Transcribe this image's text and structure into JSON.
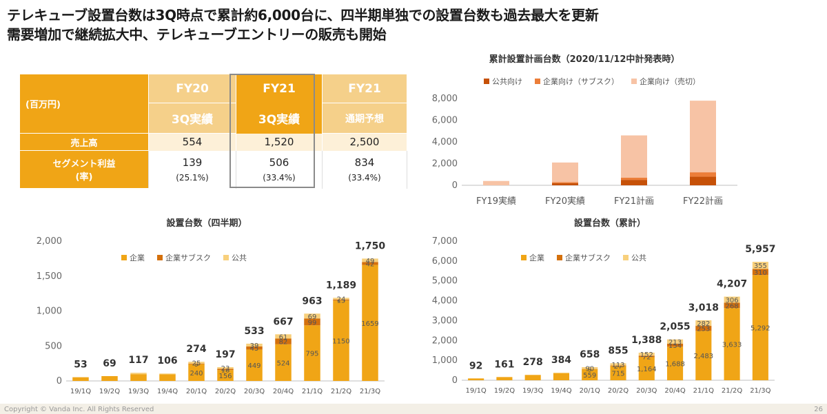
{
  "headline": {
    "line1": "テレキューブ設置台数は3Q時点で累計約6,000台に、四半期単独での設置台数も過去最大を更新",
    "line2": "需要増加で継続拡大中、テレキューブエントリーの販売も開始"
  },
  "table": {
    "unit": "(百万円)",
    "columns": [
      {
        "fy": "FY20",
        "period": "3Q実績"
      },
      {
        "fy": "FY21",
        "period": "3Q実績"
      },
      {
        "fy": "FY21",
        "period": "通期予想"
      }
    ],
    "rows": {
      "sales_label": "売上高",
      "sales": [
        "554",
        "1,520",
        "2,500"
      ],
      "segment_label_1": "セグメント利益",
      "segment_label_2": "(率)",
      "segment": [
        "139",
        "506",
        "834"
      ],
      "segment_rate": [
        "(25.1%)",
        "(33.4%)",
        "(33.4%)"
      ]
    }
  },
  "footer": {
    "copyright": "Copyright © Vanda Inc. All Rights Reserved",
    "page": "26"
  },
  "chart_data": [
    {
      "id": "plan",
      "type": "bar",
      "stacked": true,
      "title": "累計設置計画台数（2020/11/12中計発表時）",
      "categories": [
        "FY19実績",
        "FY20実績",
        "FY21計画",
        "FY22計画"
      ],
      "ylim": [
        0,
        8000
      ],
      "yticks": [
        "0",
        "2,000",
        "4,000",
        "6,000",
        "8,000"
      ],
      "legend_position": "top",
      "series": [
        {
          "name": "公共向け",
          "color": "#c65108",
          "values": [
            0,
            200,
            500,
            800
          ]
        },
        {
          "name": "企業向け（サブスク）",
          "color": "#ec7e39",
          "values": [
            0,
            100,
            200,
            400
          ]
        },
        {
          "name": "企業向け（売切）",
          "color": "#f7c3a5",
          "values": [
            400,
            1800,
            3900,
            6600
          ]
        }
      ]
    },
    {
      "id": "quarterly",
      "type": "bar",
      "stacked": true,
      "title": "設置台数（四半期）",
      "categories": [
        "19/1Q",
        "19/2Q",
        "19/3Q",
        "19/4Q",
        "20/1Q",
        "20/2Q",
        "20/3Q",
        "20/4Q",
        "21/1Q",
        "21/2Q",
        "21/3Q"
      ],
      "ylim": [
        0,
        2000
      ],
      "yticks": [
        "0",
        "500",
        "1,000",
        "1,500",
        "2,000"
      ],
      "legend_position": "top",
      "totals": [
        "53",
        "69",
        "117",
        "106",
        "274",
        "197",
        "533",
        "667",
        "963",
        "1,189",
        "1,750"
      ],
      "series": [
        {
          "name": "企業",
          "color": "#f0a516",
          "values": [
            53,
            69,
            97,
            96,
            240,
            156,
            449,
            524,
            795,
            1150,
            1659
          ],
          "labels": [
            "",
            "",
            "",
            "",
            "240",
            "156",
            "449",
            "524",
            "795",
            "1150",
            "1659"
          ]
        },
        {
          "name": "企業サブスク",
          "color": "#d4700c",
          "values": [
            0,
            0,
            0,
            0,
            9,
            18,
            45,
            82,
            99,
            15,
            42
          ],
          "labels": [
            "",
            "",
            "",
            "",
            "9",
            "18",
            "45",
            "82",
            "99",
            "15",
            "42"
          ]
        },
        {
          "name": "公共",
          "color": "#f8d07c",
          "values": [
            0,
            0,
            20,
            10,
            25,
            23,
            39,
            61,
            69,
            24,
            49
          ],
          "labels": [
            "",
            "",
            "",
            "",
            "25",
            "23",
            "39",
            "61",
            "69",
            "24",
            "49"
          ]
        }
      ]
    },
    {
      "id": "cumulative",
      "type": "bar",
      "stacked": true,
      "title": "設置台数（累計）",
      "categories": [
        "19/1Q",
        "19/2Q",
        "19/3Q",
        "19/4Q",
        "20/1Q",
        "20/2Q",
        "20/3Q",
        "20/4Q",
        "21/1Q",
        "21/2Q",
        "21/3Q"
      ],
      "ylim": [
        0,
        7000
      ],
      "yticks": [
        "0",
        "1,000",
        "2,000",
        "3,000",
        "4,000",
        "5,000",
        "6,000",
        "7,000"
      ],
      "legend_position": "top",
      "totals": [
        "92",
        "161",
        "278",
        "384",
        "658",
        "855",
        "1,388",
        "2,055",
        "3,018",
        "4,207",
        "5,957"
      ],
      "series": [
        {
          "name": "企業",
          "color": "#f0a516",
          "values": [
            92,
            161,
            258,
            354,
            559,
            715,
            1164,
            1688,
            2483,
            3633,
            5292
          ],
          "labels": [
            "",
            "",
            "",
            "",
            "559",
            "715",
            "1,164",
            "1,688",
            "2,483",
            "3,633",
            "5,292"
          ]
        },
        {
          "name": "企業サブスク",
          "color": "#d4700c",
          "values": [
            0,
            0,
            0,
            0,
            9,
            27,
            72,
            154,
            253,
            268,
            310
          ],
          "labels": [
            "",
            "",
            "",
            "",
            "9",
            "27",
            "72",
            "154",
            "253",
            "268",
            "310"
          ]
        },
        {
          "name": "公共",
          "color": "#f8d07c",
          "values": [
            0,
            0,
            20,
            30,
            90,
            113,
            152,
            213,
            282,
            306,
            355
          ],
          "labels": [
            "",
            "",
            "",
            "",
            "90",
            "113",
            "152",
            "213",
            "282",
            "306",
            "355"
          ]
        }
      ]
    }
  ]
}
